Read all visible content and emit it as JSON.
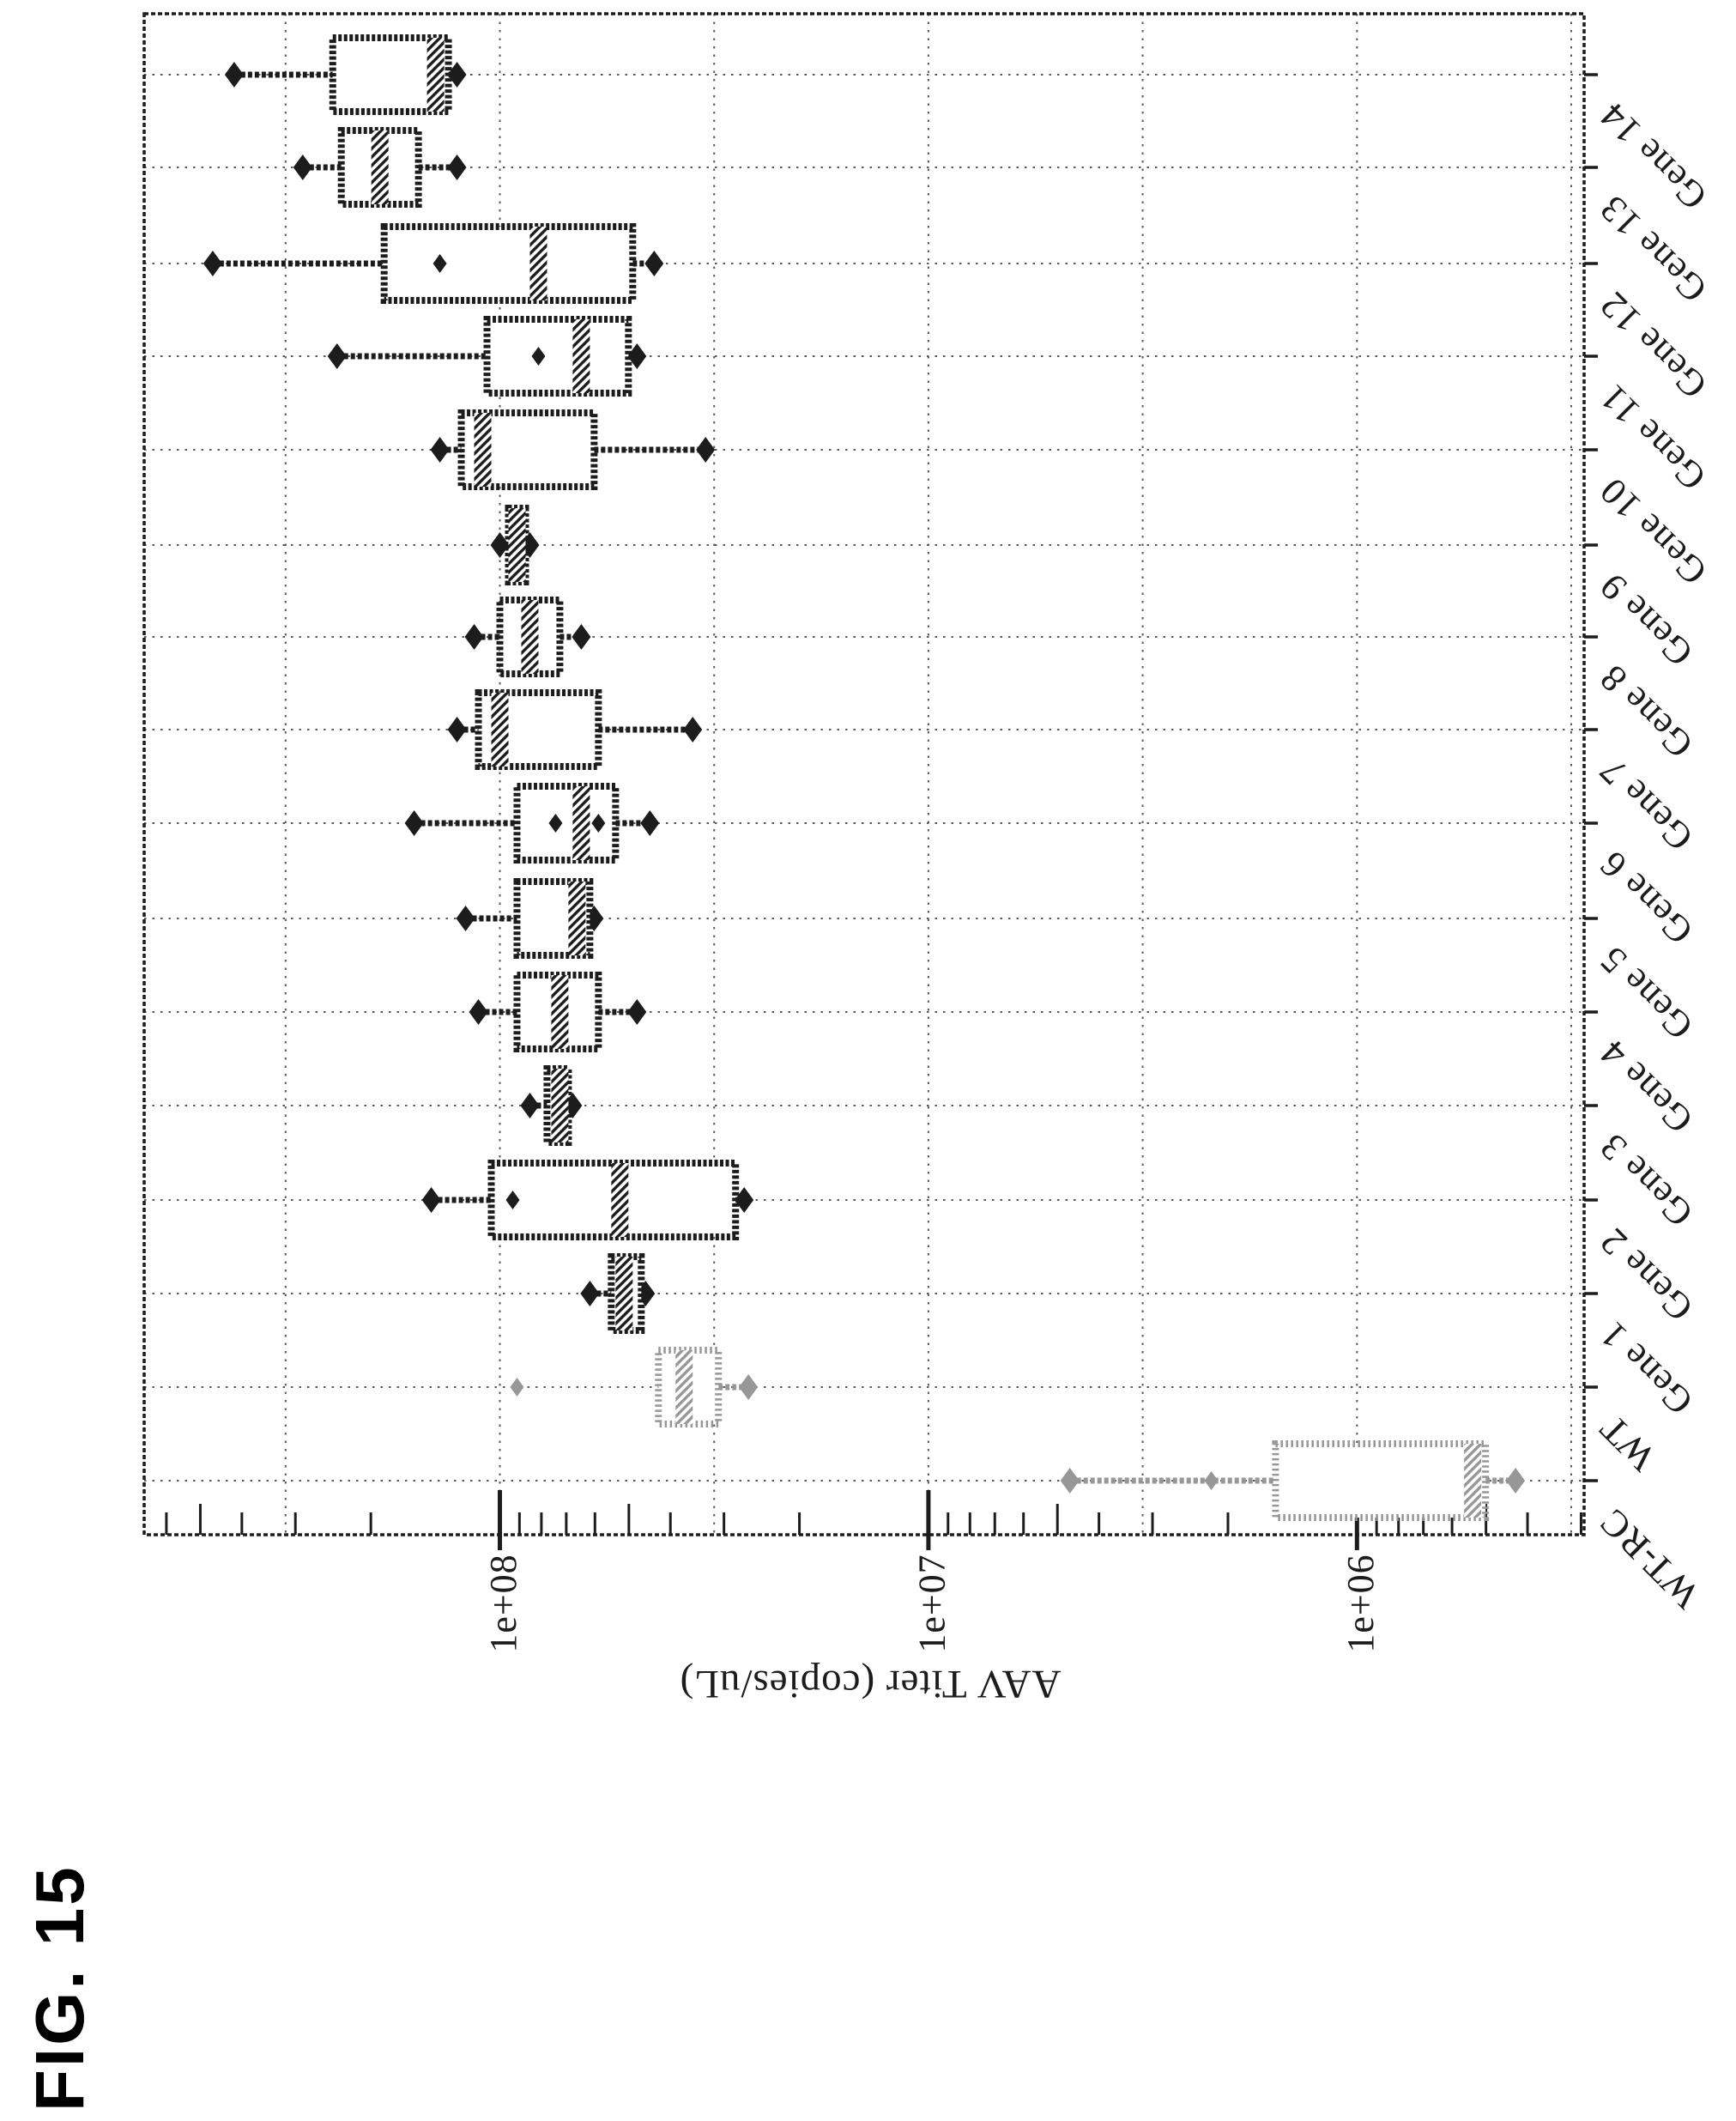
{
  "figure_label": "FIG. 15",
  "chart": {
    "chart_data": {
      "type": "boxplot",
      "orientation": "entire plot rotated 90deg counter-clockwise; high values at left, categories listed top to bottom on right edge",
      "title": "",
      "value_axis": {
        "title": "AAV Titer (copies/uL)",
        "scale": "log10",
        "unit": "copies/uL",
        "major_ticks": [
          {
            "label": "1e+08",
            "log10": 8
          },
          {
            "label": "1e+07",
            "log10": 7
          },
          {
            "label": "1e+06",
            "log10": 6
          }
        ],
        "minor_ticks": "2-9 within each decade",
        "axis_range_log10": {
          "left": 8.83,
          "right": 5.47
        },
        "gridlines_log10": [
          8.5,
          8.0,
          7.5,
          7.0,
          6.5,
          6.0,
          5.5
        ],
        "grid": "dotted half-decade gridlines plus one dotted gridline per category"
      },
      "category_axis": {
        "order": "top to bottom"
      },
      "series": [
        {
          "name": "Gene 14",
          "group": "gene",
          "stats_log10": {
            "whisker_high": 8.62,
            "q3": 8.39,
            "median": 8.15,
            "q1": 8.12,
            "whisker_low": 8.1
          },
          "points_log10": []
        },
        {
          "name": "Gene 13",
          "group": "gene",
          "stats_log10": {
            "whisker_high": 8.46,
            "q3": 8.37,
            "median": 8.28,
            "q1": 8.19,
            "whisker_low": 8.1
          },
          "points_log10": []
        },
        {
          "name": "Gene 12",
          "group": "gene",
          "stats_log10": {
            "whisker_high": 8.67,
            "q3": 8.27,
            "median": 7.91,
            "q1": 7.69,
            "whisker_low": 7.64
          },
          "points_log10": [
            8.14
          ]
        },
        {
          "name": "Gene 11",
          "group": "gene",
          "stats_log10": {
            "whisker_high": 8.38,
            "q3": 8.03,
            "median": 7.81,
            "q1": 7.7,
            "whisker_low": 7.68
          },
          "points_log10": [
            7.91
          ]
        },
        {
          "name": "Gene 10",
          "group": "gene",
          "stats_log10": {
            "whisker_high": 8.14,
            "q3": 8.09,
            "median": 8.04,
            "q1": 7.78,
            "whisker_low": 7.52
          },
          "points_log10": []
        },
        {
          "name": "Gene 9",
          "group": "gene",
          "stats_log10": {
            "whisker_high": 8.0,
            "q3": 7.98,
            "median": 7.96,
            "q1": 7.94,
            "whisker_low": 7.93
          },
          "points_log10": []
        },
        {
          "name": "Gene 8",
          "group": "gene",
          "stats_log10": {
            "whisker_high": 8.06,
            "q3": 8.0,
            "median": 7.93,
            "q1": 7.86,
            "whisker_low": 7.81
          },
          "points_log10": []
        },
        {
          "name": "Gene 7",
          "group": "gene",
          "stats_log10": {
            "whisker_high": 8.1,
            "q3": 8.05,
            "median": 8.0,
            "q1": 7.77,
            "whisker_low": 7.55
          },
          "points_log10": []
        },
        {
          "name": "Gene 6",
          "group": "gene",
          "stats_log10": {
            "whisker_high": 8.2,
            "q3": 7.96,
            "median": 7.81,
            "q1": 7.73,
            "whisker_low": 7.65
          },
          "points_log10": [
            7.87,
            7.77
          ]
        },
        {
          "name": "Gene 5",
          "group": "gene",
          "stats_log10": {
            "whisker_high": 8.08,
            "q3": 7.96,
            "median": 7.82,
            "q1": 7.79,
            "whisker_low": 7.78
          },
          "points_log10": []
        },
        {
          "name": "Gene 4",
          "group": "gene",
          "stats_log10": {
            "whisker_high": 8.05,
            "q3": 7.96,
            "median": 7.86,
            "q1": 7.77,
            "whisker_low": 7.68
          },
          "points_log10": []
        },
        {
          "name": "Gene 3",
          "group": "gene",
          "stats_log10": {
            "whisker_high": 7.93,
            "q3": 7.89,
            "median": 7.86,
            "q1": 7.84,
            "whisker_low": 7.83
          },
          "points_log10": []
        },
        {
          "name": "Gene 2",
          "group": "gene",
          "stats_log10": {
            "whisker_high": 8.16,
            "q3": 8.02,
            "median": 7.72,
            "q1": 7.45,
            "whisker_low": 7.43
          },
          "points_log10": [
            7.97
          ]
        },
        {
          "name": "Gene 1",
          "group": "gene",
          "stats_log10": {
            "whisker_high": 7.79,
            "q3": 7.74,
            "median": 7.71,
            "q1": 7.67,
            "whisker_low": 7.66
          },
          "points_log10": []
        },
        {
          "name": "WT",
          "group": "control",
          "stats_log10": {
            "whisker_high": 7.63,
            "q3": 7.63,
            "median": 7.57,
            "q1": 7.49,
            "whisker_low": 7.42
          },
          "points_log10": [
            7.96
          ]
        },
        {
          "name": "WT-RC",
          "group": "control",
          "stats_log10": {
            "whisker_high": 6.67,
            "q3": 6.19,
            "median": 5.73,
            "q1": 5.7,
            "whisker_low": 5.63
          },
          "points_log10": [
            6.34
          ]
        }
      ],
      "colors": {
        "ink": "#1c1c1c",
        "muted_ink": "#979797",
        "grid": "#5a5a5a",
        "background": "#ffffff"
      }
    }
  }
}
